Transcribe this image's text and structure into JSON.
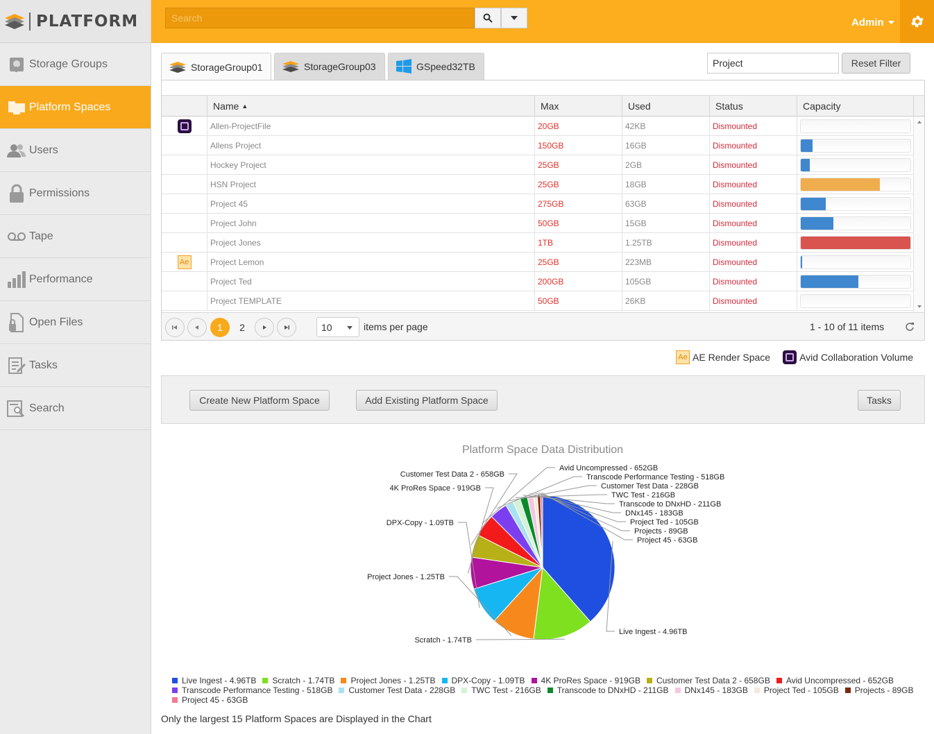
{
  "app": {
    "logo_text": "PLATFORM"
  },
  "sidebar": {
    "items": [
      {
        "label": "Storage Groups",
        "icon": "storage-icon",
        "active": false
      },
      {
        "label": "Platform Spaces",
        "icon": "folder-icon",
        "active": true
      },
      {
        "label": "Users",
        "icon": "users-icon",
        "active": false
      },
      {
        "label": "Permissions",
        "icon": "lock-icon",
        "active": false
      },
      {
        "label": "Tape",
        "icon": "tape-icon",
        "active": false
      },
      {
        "label": "Performance",
        "icon": "bar-chart-icon",
        "active": false
      },
      {
        "label": "Open Files",
        "icon": "file-lock-icon",
        "active": false
      },
      {
        "label": "Tasks",
        "icon": "task-list-icon",
        "active": false
      },
      {
        "label": "Search",
        "icon": "search-doc-icon",
        "active": false
      }
    ]
  },
  "topbar": {
    "search_placeholder": "Search",
    "user_label": "Admin",
    "accent_color": "#fcae1e"
  },
  "tabs": [
    {
      "label": "StorageGroup01",
      "icon": "storage-group-icon",
      "active": true
    },
    {
      "label": "StorageGroup03",
      "icon": "storage-group-icon",
      "active": false
    },
    {
      "label": "GSpeed32TB",
      "icon": "windows-icon",
      "active": false
    }
  ],
  "filter": {
    "value": "Project",
    "reset_label": "Reset Filter"
  },
  "grid": {
    "columns": [
      "Name",
      "Max",
      "Used",
      "Status",
      "Capacity"
    ],
    "sort_indicator": "▲",
    "rows": [
      {
        "icon": "avid",
        "name": "Allen-ProjectFile",
        "max": "20GB",
        "used": "42KB",
        "status": "Dismounted",
        "capacity": 0.0,
        "color": "#3f87cf"
      },
      {
        "icon": "",
        "name": "Allens Project",
        "max": "150GB",
        "used": "16GB",
        "status": "Dismounted",
        "capacity": 0.107,
        "color": "#3f87cf"
      },
      {
        "icon": "",
        "name": "Hockey Project",
        "max": "25GB",
        "used": "2GB",
        "status": "Dismounted",
        "capacity": 0.08,
        "color": "#3f87cf"
      },
      {
        "icon": "",
        "name": "HSN Project",
        "max": "25GB",
        "used": "18GB",
        "status": "Dismounted",
        "capacity": 0.72,
        "color": "#f0ad4e"
      },
      {
        "icon": "",
        "name": "Project 45",
        "max": "275GB",
        "used": "63GB",
        "status": "Dismounted",
        "capacity": 0.229,
        "color": "#3f87cf"
      },
      {
        "icon": "",
        "name": "Project John",
        "max": "50GB",
        "used": "15GB",
        "status": "Dismounted",
        "capacity": 0.3,
        "color": "#3f87cf"
      },
      {
        "icon": "",
        "name": "Project Jones",
        "max": "1TB",
        "used": "1.25TB",
        "status": "Dismounted",
        "capacity": 1.0,
        "color": "#d9534f"
      },
      {
        "icon": "ae",
        "name": "Project Lemon",
        "max": "25GB",
        "used": "223MB",
        "status": "Dismounted",
        "capacity": 0.009,
        "color": "#3f87cf"
      },
      {
        "icon": "",
        "name": "Project Ted",
        "max": "200GB",
        "used": "105GB",
        "status": "Dismounted",
        "capacity": 0.525,
        "color": "#3f87cf"
      },
      {
        "icon": "",
        "name": "Project TEMPLATE",
        "max": "50GB",
        "used": "26KB",
        "status": "Dismounted",
        "capacity": 0.0,
        "color": "#3f87cf"
      }
    ]
  },
  "pager": {
    "pages": [
      "1",
      "2"
    ],
    "current_page": "1",
    "per_page": "10",
    "per_page_label": "items per page",
    "summary": "1 - 10 of 11 items"
  },
  "icon_legend": {
    "ae_label": "AE Render Space",
    "avid_label": "Avid Collaboration Volume"
  },
  "actions": {
    "create_label": "Create New Platform Space",
    "add_label": "Add Existing Platform Space",
    "tasks_label": "Tasks"
  },
  "chart_data": {
    "type": "pie",
    "title": "Platform Space Data Distribution",
    "unit": "GB",
    "slices": [
      {
        "label": "Live Ingest - 4.96TB",
        "value": 4960,
        "color": "#1f4fe0"
      },
      {
        "label": "Scratch - 1.74TB",
        "value": 1740,
        "color": "#7fe01f"
      },
      {
        "label": "Project Jones - 1.25TB",
        "value": 1250,
        "color": "#f7891c"
      },
      {
        "label": "DPX-Copy - 1.09TB",
        "value": 1090,
        "color": "#15b6f2"
      },
      {
        "label": "4K ProRes Space - 919GB",
        "value": 919,
        "color": "#b1139c"
      },
      {
        "label": "Customer Test Data 2 - 658GB",
        "value": 658,
        "color": "#b8b017"
      },
      {
        "label": "Avid Uncompressed - 652GB",
        "value": 652,
        "color": "#f21a1a"
      },
      {
        "label": "Transcode Performance Testing - 518GB",
        "value": 518,
        "color": "#7b3ff0"
      },
      {
        "label": "Customer Test Data - 228GB",
        "value": 228,
        "color": "#a8e1f2"
      },
      {
        "label": "TWC Test - 216GB",
        "value": 216,
        "color": "#d4f2d4"
      },
      {
        "label": "Transcode to DNxHD - 211GB",
        "value": 211,
        "color": "#0b8a2a"
      },
      {
        "label": "DNx145 - 183GB",
        "value": 183,
        "color": "#f2c8e0"
      },
      {
        "label": "Project Ted - 105GB",
        "value": 105,
        "color": "#f4e8da"
      },
      {
        "label": "Projects - 89GB",
        "value": 89,
        "color": "#7a2a10"
      },
      {
        "label": "Project 45 - 63GB",
        "value": 63,
        "color": "#f07890"
      }
    ],
    "note": "Only the largest 15 Platform Spaces are Displayed in the Chart"
  }
}
